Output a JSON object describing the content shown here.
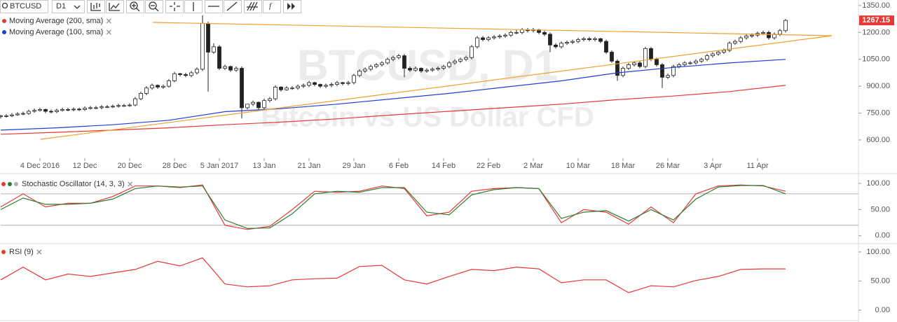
{
  "toolbar": {
    "symbol": "BTCUSD",
    "interval": "D1",
    "indicator_button": "f"
  },
  "chart_data": [
    {
      "type": "candlestick",
      "title": "BTCUSD, D1",
      "subtitle": "Bitcoin vs US Dollar CFD",
      "up_color": "#ffffff",
      "down_color": "#222222",
      "open": [
        730,
        735,
        735,
        740,
        745,
        748,
        760,
        765,
        770,
        760,
        758,
        765,
        770,
        768,
        772,
        770,
        778,
        780,
        780,
        785,
        785,
        788,
        792,
        792,
        795,
        830,
        860,
        890,
        905,
        895,
        900,
        930,
        970,
        965,
        960,
        975,
        995,
        1250,
        1090,
        1120,
        1000,
        1010,
        990,
        1000,
        780,
        800,
        810,
        780,
        820,
        830,
        895,
        880,
        890,
        890,
        900,
        905,
        920,
        910,
        900,
        905,
        910,
        920,
        915,
        920,
        960,
        985,
        995,
        1010,
        1020,
        1030,
        1050,
        1060,
        1070,
        1000,
        990,
        1000,
        985,
        990,
        995,
        1000,
        1010,
        1030,
        1040,
        1050,
        1060,
        1120,
        1170,
        1160,
        1170,
        1175,
        1180,
        1185,
        1200,
        1200,
        1215,
        1210,
        1215,
        1200,
        1190,
        1130,
        1120,
        1140,
        1145,
        1150,
        1160,
        1165,
        1160,
        1165,
        1150,
        1090,
        1040,
        960,
        1000,
        1020,
        1030,
        1010,
        1110,
        1050,
        1020,
        950,
        960,
        1010,
        1020,
        1030,
        1030,
        1040,
        1050,
        1070,
        1080,
        1090,
        1100,
        1140,
        1150,
        1170,
        1180,
        1185,
        1195,
        1200,
        1170,
        1190,
        1210
      ],
      "high": [
        740,
        745,
        750,
        755,
        758,
        770,
        775,
        780,
        775,
        770,
        775,
        780,
        780,
        782,
        780,
        788,
        790,
        790,
        795,
        795,
        798,
        802,
        802,
        805,
        840,
        870,
        900,
        915,
        910,
        910,
        940,
        980,
        975,
        975,
        985,
        1005,
        1295,
        1260,
        1140,
        1130,
        1020,
        1015,
        1010,
        1010,
        800,
        820,
        815,
        830,
        840,
        905,
        900,
        900,
        900,
        910,
        915,
        930,
        925,
        915,
        915,
        920,
        930,
        925,
        930,
        970,
        995,
        1005,
        1020,
        1030,
        1040,
        1060,
        1070,
        1080,
        1080,
        1010,
        1010,
        1005,
        1000,
        1005,
        1010,
        1020,
        1040,
        1050,
        1060,
        1070,
        1130,
        1180,
        1180,
        1180,
        1185,
        1190,
        1195,
        1210,
        1215,
        1225,
        1225,
        1225,
        1220,
        1210,
        1200,
        1140,
        1150,
        1155,
        1160,
        1170,
        1175,
        1175,
        1175,
        1170,
        1160,
        1100,
        1050,
        1010,
        1030,
        1040,
        1040,
        1120,
        1120,
        1060,
        1030,
        970,
        1020,
        1030,
        1040,
        1040,
        1050,
        1060,
        1080,
        1090,
        1100,
        1110,
        1150,
        1160,
        1180,
        1190,
        1195,
        1205,
        1210,
        1210,
        1200,
        1220,
        1275
      ],
      "low": [
        720,
        725,
        728,
        735,
        738,
        740,
        752,
        758,
        750,
        748,
        750,
        758,
        760,
        760,
        762,
        762,
        770,
        772,
        772,
        778,
        778,
        780,
        785,
        785,
        788,
        822,
        850,
        880,
        885,
        885,
        892,
        922,
        955,
        950,
        950,
        965,
        985,
        870,
        1080,
        990,
        990,
        980,
        980,
        720,
        770,
        790,
        770,
        770,
        810,
        820,
        870,
        875,
        880,
        880,
        890,
        895,
        900,
        890,
        890,
        895,
        900,
        905,
        905,
        910,
        950,
        975,
        985,
        1000,
        1010,
        1020,
        1040,
        1050,
        950,
        980,
        980,
        975,
        975,
        980,
        985,
        990,
        1000,
        1020,
        1030,
        1040,
        1050,
        1110,
        1150,
        1150,
        1160,
        1165,
        1170,
        1175,
        1190,
        1190,
        1200,
        1200,
        1190,
        1180,
        1090,
        1110,
        1110,
        1130,
        1135,
        1140,
        1150,
        1150,
        1150,
        1140,
        1080,
        1030,
        930,
        950,
        990,
        1010,
        1000,
        1000,
        1040,
        1010,
        890,
        940,
        950,
        1000,
        1010,
        1020,
        1020,
        1030,
        1040,
        1060,
        1070,
        1080,
        1090,
        1130,
        1140,
        1160,
        1170,
        1175,
        1185,
        1160,
        1160,
        1180,
        1200
      ],
      "close": [
        735,
        735,
        740,
        745,
        748,
        760,
        765,
        770,
        760,
        758,
        765,
        770,
        768,
        772,
        770,
        778,
        780,
        780,
        785,
        785,
        788,
        792,
        792,
        795,
        830,
        860,
        890,
        905,
        895,
        900,
        930,
        970,
        965,
        960,
        975,
        995,
        1250,
        1090,
        1120,
        1000,
        1010,
        990,
        1000,
        780,
        800,
        810,
        780,
        820,
        830,
        895,
        880,
        890,
        890,
        900,
        905,
        920,
        910,
        900,
        905,
        910,
        920,
        915,
        920,
        960,
        985,
        995,
        1010,
        1020,
        1030,
        1050,
        1060,
        1070,
        1000,
        990,
        1000,
        985,
        990,
        995,
        1000,
        1010,
        1030,
        1040,
        1050,
        1060,
        1120,
        1170,
        1160,
        1170,
        1175,
        1180,
        1185,
        1200,
        1200,
        1215,
        1210,
        1215,
        1200,
        1190,
        1130,
        1120,
        1140,
        1145,
        1150,
        1160,
        1165,
        1160,
        1165,
        1150,
        1090,
        1040,
        960,
        1000,
        1020,
        1030,
        1010,
        1110,
        1050,
        1020,
        950,
        960,
        1010,
        1020,
        1030,
        1030,
        1040,
        1050,
        1070,
        1080,
        1090,
        1100,
        1140,
        1150,
        1170,
        1180,
        1185,
        1195,
        1200,
        1170,
        1190,
        1210,
        1267.15
      ],
      "series": [
        {
          "name": "Moving Average (200, sma)",
          "color": "#e53935",
          "x": [
            0,
            10,
            20,
            30,
            40,
            50,
            60,
            70,
            80,
            90,
            100,
            110,
            120,
            130,
            140
          ],
          "values": [
            632,
            643,
            655,
            668,
            685,
            700,
            718,
            740,
            760,
            780,
            800,
            825,
            845,
            870,
            905
          ]
        },
        {
          "name": "Moving Average (100, sma)",
          "color": "#1e40d8",
          "x": [
            0,
            10,
            20,
            30,
            40,
            50,
            60,
            70,
            80,
            90,
            100,
            110,
            120,
            130,
            140
          ],
          "values": [
            655,
            668,
            685,
            710,
            758,
            775,
            800,
            830,
            860,
            895,
            930,
            975,
            1005,
            1030,
            1050
          ]
        }
      ],
      "xlim": [
        0,
        153
      ],
      "xticks": [
        {
          "value": 7,
          "label": "4 Dec 2016"
        },
        {
          "value": 15,
          "label": "12 Dec"
        },
        {
          "value": 23,
          "label": "20 Dec"
        },
        {
          "value": 31,
          "label": "28 Dec"
        },
        {
          "value": 39,
          "label": "5 Jan 2017"
        },
        {
          "value": 47,
          "label": "13 Jan"
        },
        {
          "value": 55,
          "label": "21 Jan"
        },
        {
          "value": 63,
          "label": "29 Jan"
        },
        {
          "value": 71,
          "label": "6 Feb"
        },
        {
          "value": 79,
          "label": "14 Feb"
        },
        {
          "value": 87,
          "label": "22 Feb"
        },
        {
          "value": 95,
          "label": "2 Mar"
        },
        {
          "value": 103,
          "label": "10 Mar"
        },
        {
          "value": 111,
          "label": "18 Mar"
        },
        {
          "value": 119,
          "label": "26 Mar"
        },
        {
          "value": 127,
          "label": "3 Apr"
        },
        {
          "value": 135,
          "label": "11 Apr"
        }
      ],
      "ylim": [
        514,
        1381
      ],
      "yticks": [
        {
          "value": 1350,
          "label": "1350.00"
        },
        {
          "value": 1200,
          "label": "1200.00"
        },
        {
          "value": 1050,
          "label": "1050.00"
        },
        {
          "value": 900,
          "label": "900.00"
        },
        {
          "value": 750,
          "label": "750.00"
        },
        {
          "value": 600,
          "label": "600.00"
        }
      ],
      "last_price_color": "#e53935"
    },
    {
      "type": "line",
      "title": "Stochastic Oscillator (14, 3, 3)",
      "xlim": [
        0,
        153
      ],
      "series": [
        {
          "color": "#e53935",
          "x": [
            0,
            4,
            8,
            12,
            16,
            20,
            24,
            28,
            32,
            36,
            40,
            44,
            48,
            52,
            56,
            60,
            64,
            68,
            72,
            76,
            80,
            84,
            88,
            92,
            96,
            100,
            104,
            108,
            112,
            116,
            120,
            124,
            128,
            132,
            136,
            140
          ],
          "values": [
            55,
            80,
            55,
            62,
            62,
            75,
            95,
            95,
            92,
            97,
            20,
            12,
            18,
            50,
            85,
            83,
            85,
            95,
            90,
            38,
            45,
            85,
            90,
            92,
            90,
            25,
            50,
            45,
            22,
            55,
            25,
            80,
            95,
            97,
            95,
            85
          ]
        },
        {
          "color": "#2e7d32",
          "x": [
            0,
            4,
            8,
            12,
            16,
            20,
            24,
            28,
            32,
            36,
            40,
            44,
            48,
            52,
            56,
            60,
            64,
            68,
            72,
            76,
            80,
            84,
            88,
            92,
            96,
            100,
            104,
            108,
            112,
            116,
            120,
            124,
            128,
            132,
            136,
            140
          ],
          "values": [
            50,
            72,
            60,
            60,
            62,
            70,
            90,
            95,
            93,
            95,
            30,
            14,
            15,
            42,
            80,
            85,
            83,
            92,
            92,
            45,
            40,
            78,
            88,
            92,
            90,
            33,
            45,
            48,
            28,
            50,
            30,
            70,
            93,
            96,
            96,
            80
          ]
        }
      ],
      "hlines": [
        80,
        20
      ],
      "hline_color": "#b0b0b0",
      "ylim": [
        -11,
        116
      ],
      "yticks": [
        {
          "value": 100,
          "label": "100.00"
        },
        {
          "value": 50,
          "label": "50.00"
        },
        {
          "value": 0,
          "label": "0.00"
        }
      ]
    },
    {
      "type": "line",
      "title": "RSI (9)",
      "xlim": [
        0,
        153
      ],
      "series": [
        {
          "color": "#e53935",
          "x": [
            0,
            4,
            8,
            12,
            16,
            20,
            24,
            28,
            32,
            36,
            40,
            44,
            48,
            52,
            56,
            60,
            64,
            68,
            72,
            76,
            80,
            84,
            88,
            92,
            96,
            100,
            104,
            108,
            112,
            116,
            120,
            124,
            128,
            132,
            136,
            140
          ],
          "values": [
            52,
            74,
            52,
            62,
            58,
            64,
            70,
            84,
            76,
            90,
            45,
            40,
            42,
            52,
            54,
            55,
            75,
            77,
            52,
            45,
            58,
            70,
            68,
            74,
            71,
            47,
            52,
            52,
            30,
            42,
            40,
            51,
            58,
            70,
            71,
            71
          ]
        }
      ],
      "ylim": [
        -18,
        112
      ],
      "yticks": [
        {
          "value": 100,
          "label": "100.00"
        },
        {
          "value": 50,
          "label": "50.00"
        },
        {
          "value": 0,
          "label": "0.00"
        }
      ]
    }
  ]
}
